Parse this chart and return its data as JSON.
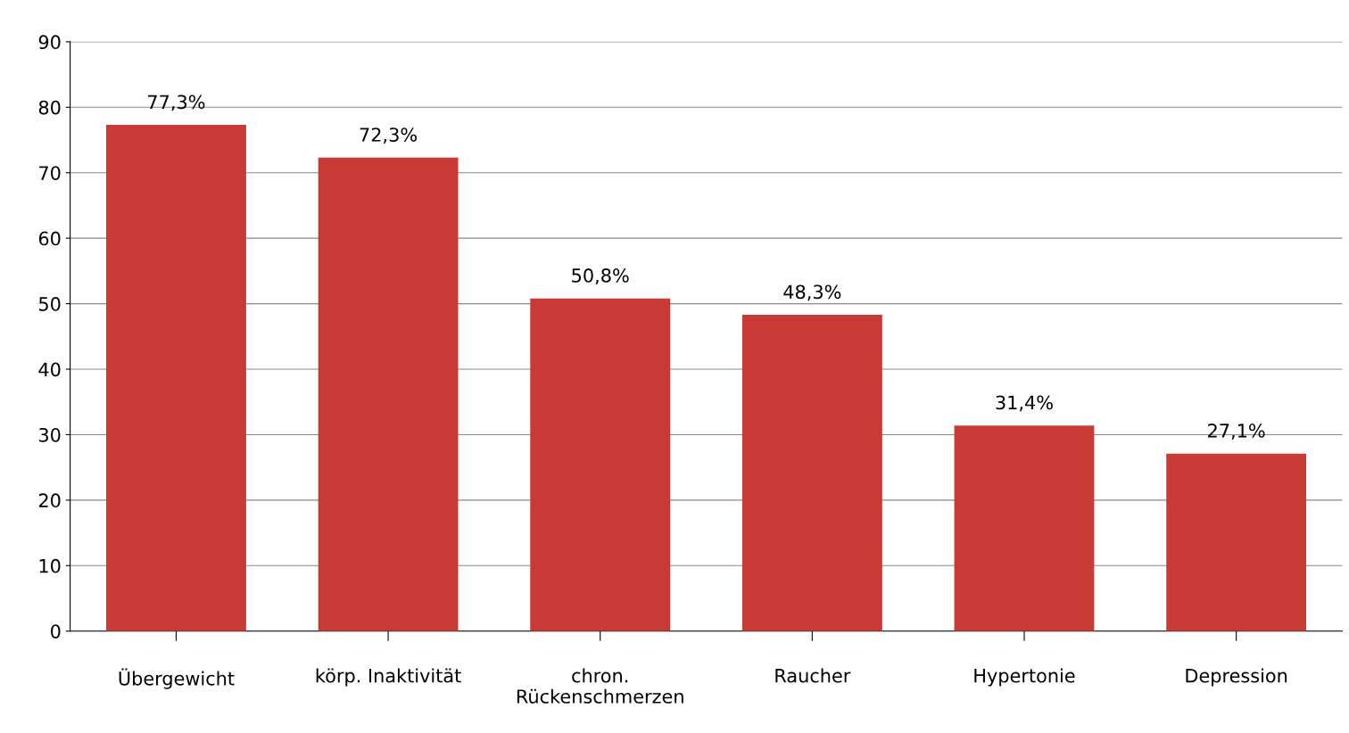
{
  "chart_data": {
    "type": "bar",
    "categories": [
      "Übergewicht",
      "körp. Inaktivität",
      "chron.\nRückenschmerzen",
      "Raucher",
      "Hypertonie",
      "Depression"
    ],
    "values": [
      77.3,
      72.3,
      50.8,
      48.3,
      31.4,
      27.1
    ],
    "value_labels": [
      "77,3%",
      "72,3%",
      "50,8%",
      "48,3%",
      "31,4%",
      "27,1%"
    ],
    "color": "#c83a36",
    "ylim": [
      0,
      90
    ],
    "yticks": [
      0,
      10,
      20,
      30,
      40,
      50,
      60,
      70,
      80,
      90
    ],
    "grid": "y"
  }
}
